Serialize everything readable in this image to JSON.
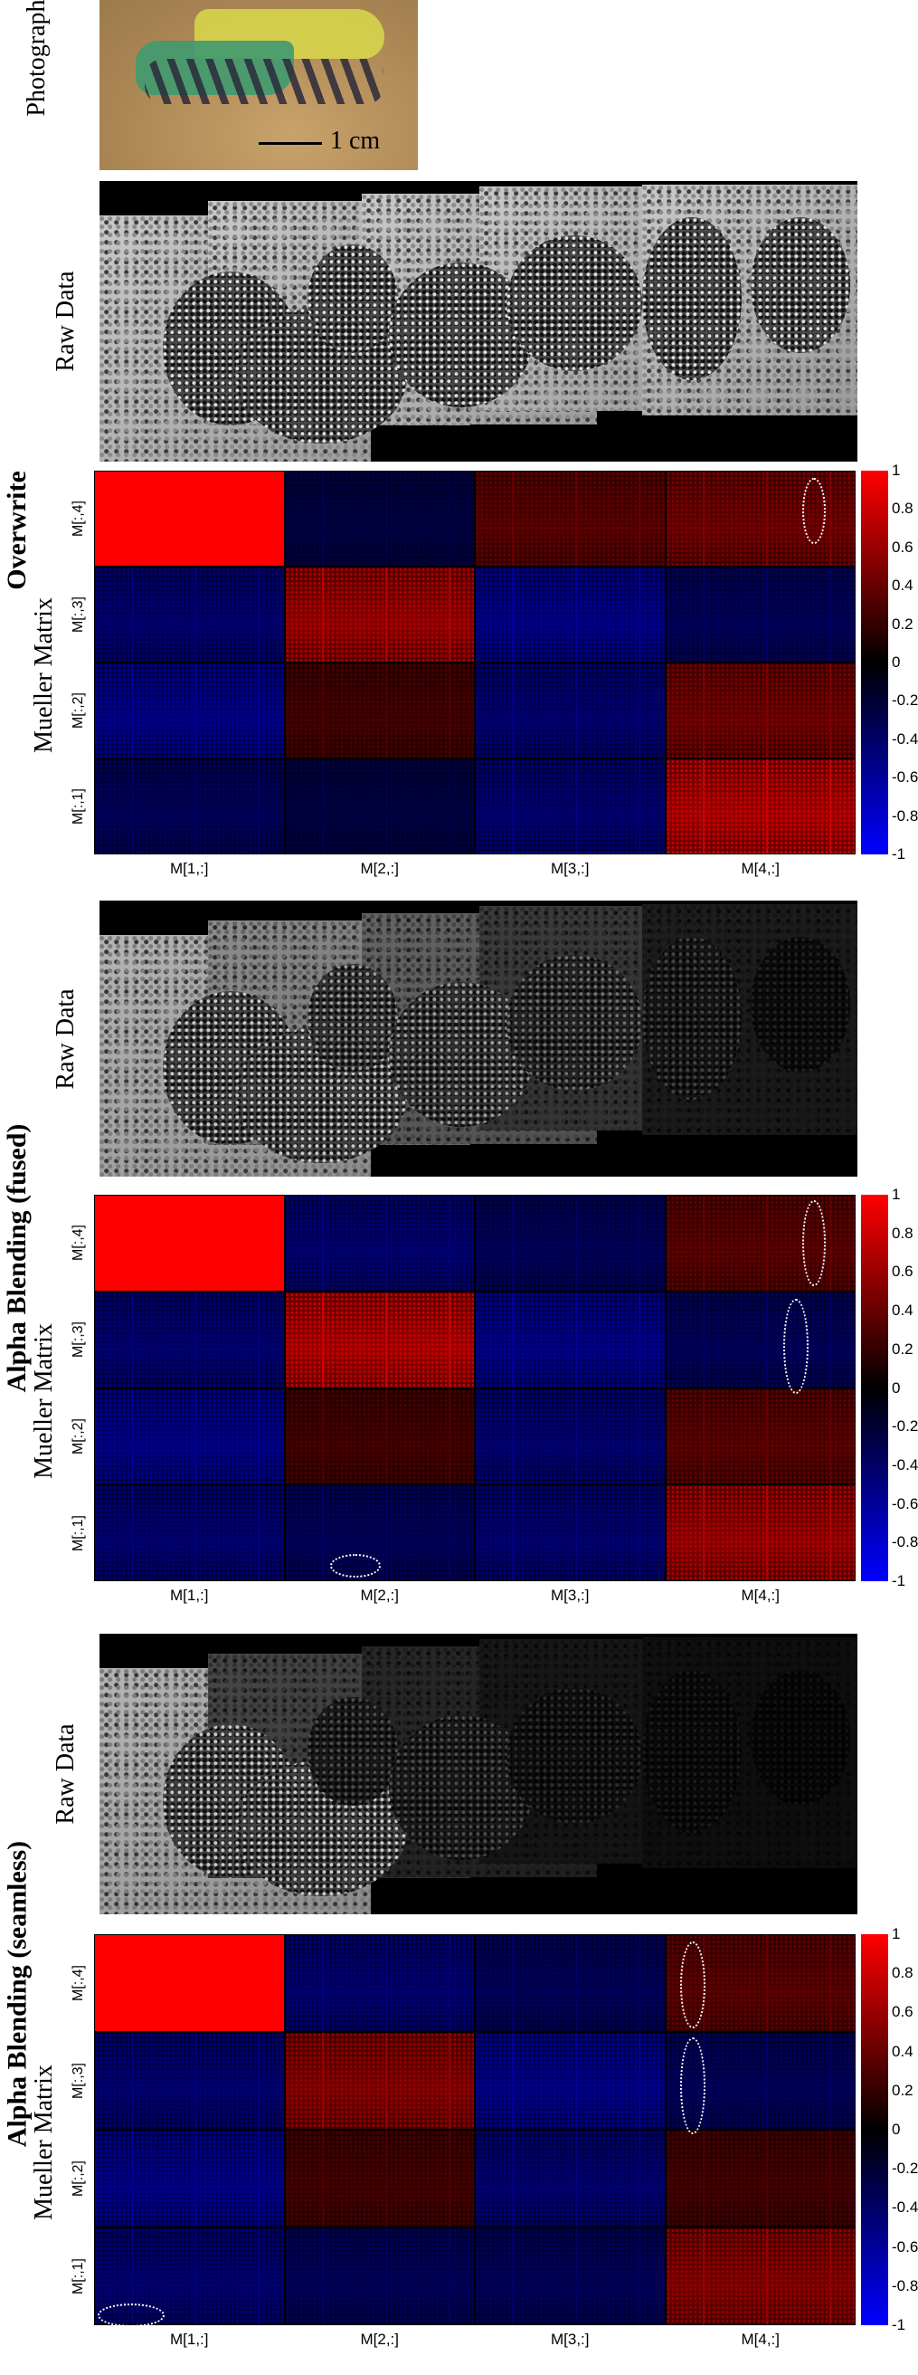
{
  "photo": {
    "side_label": "Photography",
    "scale_label": "1 cm",
    "colors": {
      "skin": "#b8925f",
      "ink_green": "#3f9a6f",
      "ink_yellow": "#d9d84b",
      "ink_dark": "#2a2a3a"
    }
  },
  "sections": [
    {
      "id": "overwrite",
      "title": "Overwrite",
      "raw_label": "Raw Data",
      "mueller_label": "Mueller Matrix",
      "raw_brightness": [
        1.0,
        1.0,
        1.0,
        1.0,
        1.0
      ],
      "ellipses": [
        {
          "cell_col": 3,
          "cell_row": 0,
          "note": ""
        }
      ]
    },
    {
      "id": "alpha-fused",
      "title": "Alpha Blending (fused)",
      "raw_label": "Raw Data",
      "mueller_label": "Mueller Matrix",
      "raw_brightness": [
        0.9,
        0.7,
        0.5,
        0.3,
        0.15
      ],
      "ellipses": []
    },
    {
      "id": "alpha-seamless",
      "title": "Alpha Blending (seamless)",
      "raw_label": "Raw Data",
      "mueller_label": "Mueller Matrix",
      "raw_brightness": [
        0.9,
        0.35,
        0.2,
        0.12,
        0.08
      ],
      "ellipses": []
    }
  ],
  "matrix": {
    "row_labels": [
      "M[:,4]",
      "M[:,3]",
      "M[:,2]",
      "M[:,1]"
    ],
    "col_labels": [
      "M[1,:]",
      "M[2,:]",
      "M[3,:]",
      "M[4,:]"
    ],
    "values_overwrite": [
      [
        1.0,
        -0.3,
        0.4,
        0.5
      ],
      [
        -0.5,
        0.7,
        -0.6,
        -0.4
      ],
      [
        -0.6,
        0.3,
        -0.5,
        0.5
      ],
      [
        -0.4,
        -0.3,
        -0.5,
        0.8
      ]
    ],
    "values_fused": [
      [
        1.0,
        -0.5,
        -0.4,
        0.4
      ],
      [
        -0.5,
        0.8,
        -0.6,
        -0.4
      ],
      [
        -0.6,
        0.3,
        -0.5,
        0.4
      ],
      [
        -0.5,
        -0.4,
        -0.5,
        0.7
      ]
    ],
    "values_seamless": [
      [
        1.0,
        -0.5,
        -0.4,
        0.4
      ],
      [
        -0.5,
        0.6,
        -0.6,
        -0.4
      ],
      [
        -0.6,
        0.3,
        -0.5,
        0.3
      ],
      [
        -0.5,
        -0.4,
        -0.4,
        0.6
      ]
    ]
  },
  "colorbar": {
    "ticks": [
      "1",
      "0.8",
      "0.6",
      "0.4",
      "0.2",
      "0",
      "-0.2",
      "-0.4",
      "-0.6",
      "-0.8",
      "-1"
    ],
    "colors": {
      "max": "#ff0000",
      "mid": "#000000",
      "min": "#0000ff"
    }
  }
}
